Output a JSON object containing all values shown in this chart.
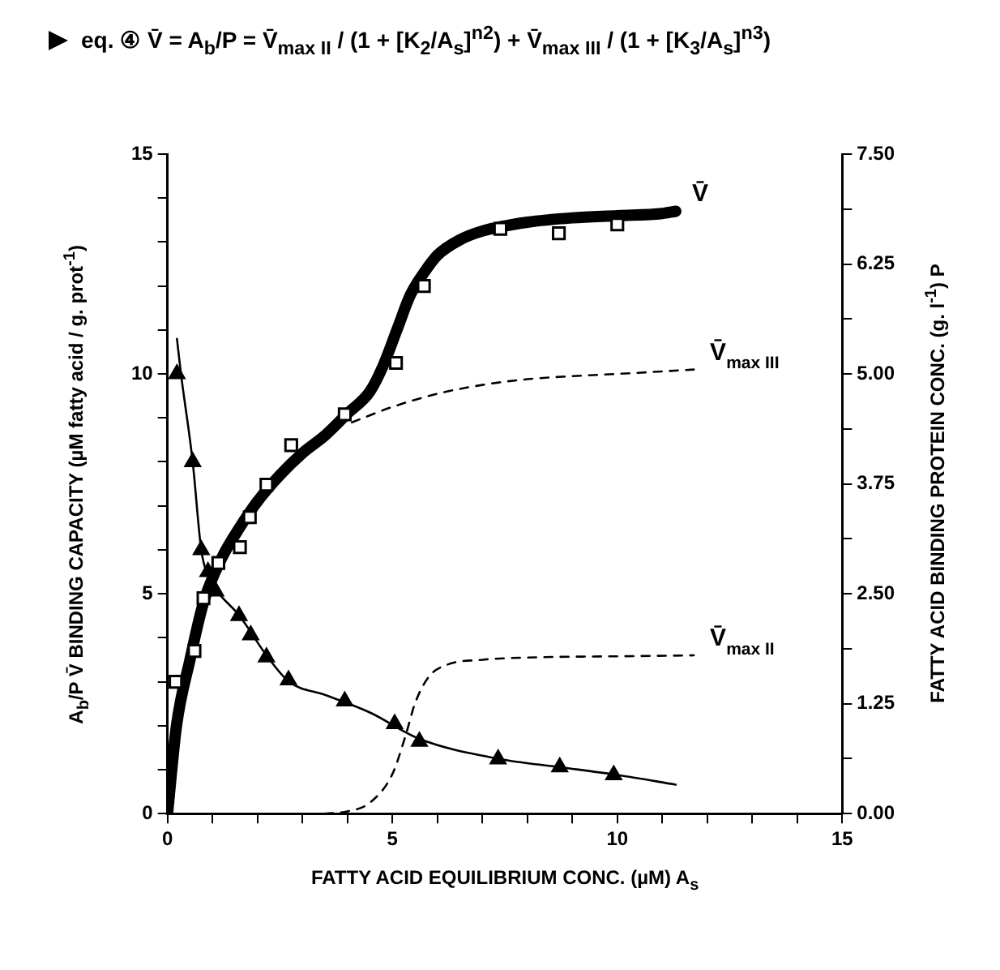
{
  "chart_data": {
    "type": "line",
    "title": "eq. ④ V̄ = A$_{b}$/P = V̄$_{max II}$ / (1 + [K$_{2}$/A$_{s}$]$^{n2}$) + V̄$_{max III}$ / (1 + [K$_{3}$/A$_{s}$]$^{n3}$)",
    "xlabel": "FATTY ACID EQUILIBRIUM CONC. (µM) A$_{s}$",
    "ylabel": "A$_{b}$/P   V̄ BINDING CAPACITY (µM fatty acid / g. prot$^{-1}$)",
    "y2label": "FATTY ACID BINDING PROTEIN CONC. (g. l$^{-1}$) P",
    "xlim": [
      0,
      15
    ],
    "xticks": [
      0,
      {
        "value": 1,
        "label": null
      },
      {
        "value": 2,
        "label": null
      },
      {
        "value": 3,
        "label": null
      },
      {
        "value": 4,
        "label": null
      },
      5,
      {
        "value": 6,
        "label": null
      },
      {
        "value": 7,
        "label": null
      },
      {
        "value": 8,
        "label": null
      },
      {
        "value": 9,
        "label": null
      },
      10,
      {
        "value": 11,
        "label": null
      },
      {
        "value": 12,
        "label": null
      },
      {
        "value": 13,
        "label": null
      },
      {
        "value": 14,
        "label": null
      },
      15
    ],
    "ylim": [
      0,
      15
    ],
    "yticks": [
      0,
      {
        "value": 1,
        "label": null
      },
      {
        "value": 2,
        "label": null
      },
      {
        "value": 3,
        "label": null
      },
      {
        "value": 4,
        "label": null
      },
      5,
      {
        "value": 6,
        "label": null
      },
      {
        "value": 7,
        "label": null
      },
      {
        "value": 8,
        "label": null
      },
      {
        "value": 9,
        "label": null
      },
      10,
      {
        "value": 11,
        "label": null
      },
      {
        "value": 12,
        "label": null
      },
      {
        "value": 13,
        "label": null
      },
      {
        "value": 14,
        "label": null
      },
      15
    ],
    "y2lim": [
      0,
      7.5
    ],
    "y2ticks": [
      {
        "value": 0,
        "label": "0.00"
      },
      {
        "value": 0.625,
        "label": null
      },
      {
        "value": 1.25,
        "label": "1.25"
      },
      {
        "value": 1.875,
        "label": null
      },
      {
        "value": 2.5,
        "label": "2.50"
      },
      {
        "value": 3.125,
        "label": null
      },
      {
        "value": 3.75,
        "label": "3.75"
      },
      {
        "value": 4.375,
        "label": null
      },
      {
        "value": 5,
        "label": "5.00"
      },
      {
        "value": 5.625,
        "label": null
      },
      {
        "value": 6.25,
        "label": "6.25"
      },
      {
        "value": 6.875,
        "label": null
      },
      {
        "value": 7.5,
        "label": "7.50"
      }
    ],
    "series": [
      {
        "name": "V̄",
        "color": "#000000",
        "marker": "none",
        "line_style": "solid",
        "x": [
          0,
          0.2,
          0.5,
          0.8,
          1.2,
          1.6,
          2,
          2.5,
          3,
          3.5,
          4,
          4.5,
          4.8,
          5.1,
          5.4,
          5.7,
          6,
          6.5,
          7,
          8,
          9,
          10,
          11,
          11.3
        ],
        "values": [
          0,
          2,
          3.5,
          4.8,
          5.8,
          6.5,
          7.1,
          7.7,
          8.2,
          8.6,
          9.1,
          9.6,
          10.2,
          11,
          11.8,
          12.3,
          12.7,
          13.05,
          13.25,
          13.45,
          13.55,
          13.6,
          13.65,
          13.7
        ]
      },
      {
        "type": "scatter",
        "color": "#000000",
        "marker": "square",
        "x": [
          0.18,
          0.6,
          0.8,
          1.13,
          1.61,
          1.83,
          2.2,
          2.75,
          3.94,
          5.08,
          5.7,
          7.4,
          8.7,
          10
        ],
        "values": [
          3.0,
          3.7,
          4.9,
          5.7,
          6.06,
          6.74,
          7.48,
          8.38,
          9.08,
          10.25,
          12.0,
          13.3,
          13.2,
          13.4
        ]
      },
      {
        "name": "V̄$_{max III}$",
        "color": "#000000",
        "marker": "none",
        "line_style": "dashed",
        "x": [
          4.1,
          5,
          6,
          7,
          8,
          9,
          10,
          11.7
        ],
        "values": [
          8.9,
          9.25,
          9.55,
          9.75,
          9.88,
          9.95,
          10.0,
          10.1
        ]
      },
      {
        "name": "V̄$_{max II}$",
        "color": "#000000",
        "marker": "none",
        "line_style": "dashed",
        "x": [
          3.5,
          4,
          4.5,
          5,
          5.3,
          5.5,
          5.8,
          6.2,
          7,
          8,
          10.15,
          11.7
        ],
        "values": [
          0,
          0.05,
          0.25,
          0.9,
          1.8,
          2.5,
          3.1,
          3.38,
          3.5,
          3.55,
          3.58,
          3.6
        ]
      },
      {
        "axis": "y2",
        "color": "#000000",
        "marker": "none",
        "line_style": "solid",
        "x": [
          0.21,
          0.3,
          0.56,
          0.75,
          0.9,
          1.07,
          1.6,
          2.2,
          2.7,
          3.5,
          4.5,
          5.6,
          7.4,
          8.7,
          10,
          11.3
        ],
        "values": [
          5.4,
          5.0,
          4.0,
          3.0,
          2.7,
          2.55,
          2.25,
          1.8,
          1.5,
          1.35,
          1.15,
          0.85,
          0.62,
          0.53,
          0.44,
          0.33
        ]
      },
      {
        "type": "scatter",
        "axis": "y2",
        "color": "#000000",
        "marker": "triangle",
        "x": [
          0.21,
          0.56,
          0.75,
          0.9,
          1.07,
          1.59,
          1.85,
          2.2,
          2.69,
          3.94,
          5.05,
          5.6,
          7.35,
          8.72,
          9.92
        ],
        "values": [
          5.0,
          4.0,
          3.0,
          2.75,
          2.53,
          2.25,
          2.03,
          1.78,
          1.52,
          1.28,
          1.02,
          0.82,
          0.62,
          0.53,
          0.44
        ]
      }
    ]
  }
}
